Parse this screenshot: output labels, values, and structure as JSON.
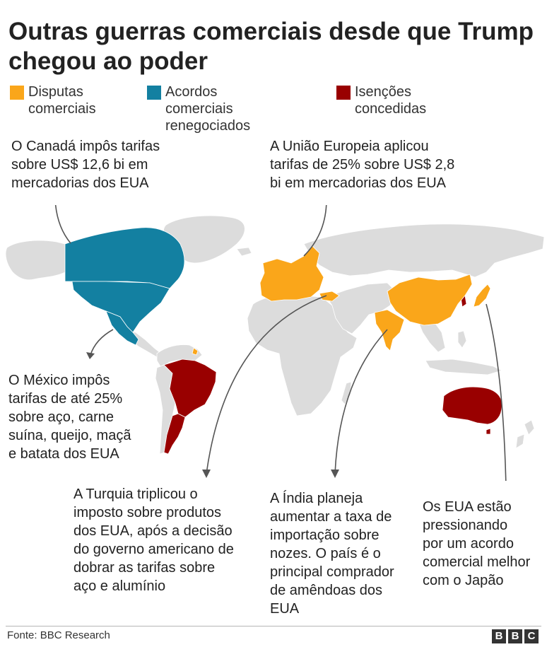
{
  "title": "Outras guerras comerciais desde que Trump chegou ao poder",
  "legend": [
    {
      "label": "Disputas\ncomerciais",
      "color": "#FAA61A"
    },
    {
      "label": "Acordos comerciais\nrenegociados",
      "color": "#1380A1"
    },
    {
      "label": "Isenções concedidas",
      "color": "#990000"
    }
  ],
  "map_colors": {
    "land": "#DCDCDC",
    "border": "#FFFFFF",
    "arrow": "#555555"
  },
  "countries": [
    {
      "name": "Canadá",
      "category": "Acordos comerciais renegociados"
    },
    {
      "name": "EUA",
      "category": "Acordos comerciais renegociados"
    },
    {
      "name": "México",
      "category": "Acordos comerciais renegociados"
    },
    {
      "name": "Brasil",
      "category": "Isenções concedidas"
    },
    {
      "name": "Argentina",
      "category": "Isenções concedidas"
    },
    {
      "name": "Austrália",
      "category": "Isenções concedidas"
    },
    {
      "name": "Coreia do Sul",
      "category": "Isenções concedidas"
    },
    {
      "name": "União Europeia",
      "category": "Disputas comerciais"
    },
    {
      "name": "Turquia",
      "category": "Disputas comerciais"
    },
    {
      "name": "China",
      "category": "Disputas comerciais"
    },
    {
      "name": "Índia",
      "category": "Disputas comerciais"
    },
    {
      "name": "Japão",
      "category": "Disputas comerciais"
    }
  ],
  "notes": {
    "canada": "O Canadá impôs tarifas\nsobre US$ 12,6 bi em\nmercadorias dos EUA",
    "eu": "A União Europeia aplicou\ntarifas de 25% sobre US$ 2,8\nbi em mercadorias dos EUA",
    "mexico": "O México impôs\ntarifas de até 25%\nsobre aço, carne\nsuína, queijo, maçã\ne batata dos EUA",
    "turkey": "A Turquia triplicou o\nimposto sobre produtos\ndos EUA, após a decisão\ndo governo americano de\ndobrar as tarifas sobre\naço e alumínio",
    "india": "A Índia planeja\naumentar a taxa de\nimportação sobre\nnozes. O país é o\nprincipal comprador\nde amêndoas dos\nEUA",
    "japan": "Os EUA estão\npressionando\npor um acordo\ncomercial melhor\ncom o Japão"
  },
  "footer": {
    "source": "Fonte: BBC Research",
    "logo": [
      "B",
      "B",
      "C"
    ]
  }
}
